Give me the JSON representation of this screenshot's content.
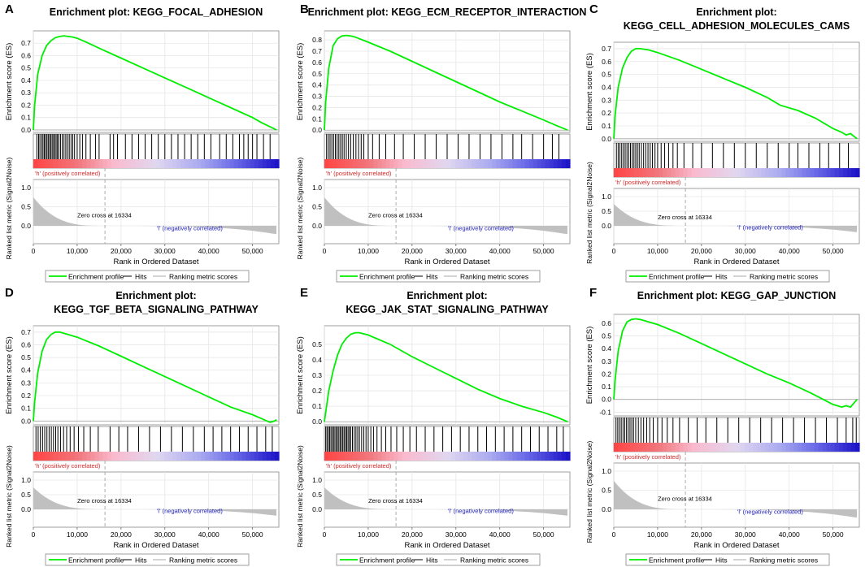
{
  "figure": {
    "shared": {
      "es_axis_label": "Enrichment score (ES)",
      "metric_axis_label": "Ranked list metric (Signal2Noise)",
      "x_axis_label": "Rank in Ordered Dataset",
      "zero_cross_text": "Zero cross at 16334",
      "pos_label": "'h' (positively correlated)",
      "neg_label": "'l' (negatively correlated)",
      "legend": [
        "Enrichment profile",
        "Hits",
        "Ranking metric scores"
      ],
      "x_ticks": [
        "0",
        "10,000",
        "20,000",
        "30,000",
        "40,000",
        "50,000"
      ],
      "metric_ticks": [
        "1.0",
        "0.5",
        "0.0"
      ],
      "colors": {
        "es_line": "#00ee00",
        "hits": "#000000",
        "metric_fill": "#c0c0c0",
        "grid": "#e6e6e6",
        "pos_text": "#d62828",
        "neg_text": "#2020c0"
      }
    }
  },
  "chart_data": [
    {
      "panel": "A",
      "type": "line",
      "title_lines": [
        "Enrichment plot: KEGG_FOCAL_ADHESION"
      ],
      "ylabel": "Enrichment score (ES)",
      "xlabel": "Rank in Ordered Dataset",
      "xlim": [
        0,
        56000
      ],
      "ylim": [
        -0.02,
        0.8
      ],
      "y_ticks": [
        "0.7",
        "0.6",
        "0.5",
        "0.4",
        "0.3",
        "0.2",
        "0.1",
        "0.0"
      ],
      "zero_cross": 16334,
      "es_curve": {
        "x": [
          0,
          300,
          1000,
          2000,
          3000,
          4000,
          5000,
          6000,
          7000,
          8000,
          9000,
          10000,
          12000,
          15000,
          20000,
          25000,
          30000,
          35000,
          40000,
          45000,
          50000,
          52000,
          54000,
          55500
        ],
        "y": [
          0.0,
          0.2,
          0.45,
          0.6,
          0.68,
          0.72,
          0.745,
          0.755,
          0.76,
          0.755,
          0.75,
          0.74,
          0.71,
          0.66,
          0.58,
          0.5,
          0.42,
          0.34,
          0.26,
          0.18,
          0.1,
          0.06,
          0.025,
          0.0
        ]
      },
      "hits_cols": [
        800,
        1200,
        1500,
        1900,
        2200,
        2500,
        2800,
        3100,
        3400,
        3700,
        4000,
        4300,
        4600,
        4900,
        5200,
        5500,
        5800,
        6200,
        6600,
        7000,
        7400,
        7800,
        8200,
        8600,
        9000,
        9400,
        10000,
        10600,
        11200,
        12000,
        13000,
        14200,
        15000,
        17500,
        18300,
        19200,
        21000,
        22500,
        24000,
        25500,
        27000,
        28500,
        30000,
        31500,
        33000,
        34500,
        36000,
        37500,
        39000,
        40500,
        42500,
        44000,
        45500,
        47000,
        48000,
        49000,
        50000,
        51000,
        52500,
        54000
      ]
    },
    {
      "panel": "B",
      "type": "line",
      "title_lines": [
        "Enrichment plot: KEGG_ECM_RECEPTOR_INTERACTION"
      ],
      "ylabel": "Enrichment score (ES)",
      "xlabel": "Rank in Ordered Dataset",
      "xlim": [
        0,
        56000
      ],
      "ylim": [
        -0.02,
        0.88
      ],
      "y_ticks": [
        "0.8",
        "0.7",
        "0.6",
        "0.5",
        "0.4",
        "0.3",
        "0.2",
        "0.1",
        "0.0"
      ],
      "zero_cross": 16334,
      "es_curve": {
        "x": [
          0,
          300,
          1000,
          2000,
          3000,
          4000,
          5000,
          6000,
          7000,
          8000,
          10000,
          15000,
          20000,
          25000,
          30000,
          35000,
          40000,
          45000,
          50000,
          53000,
          55500
        ],
        "y": [
          0.0,
          0.25,
          0.55,
          0.75,
          0.81,
          0.835,
          0.84,
          0.835,
          0.825,
          0.81,
          0.78,
          0.7,
          0.61,
          0.52,
          0.43,
          0.34,
          0.25,
          0.17,
          0.09,
          0.04,
          0.0
        ]
      },
      "hits_cols": [
        500,
        900,
        1300,
        1700,
        2100,
        2500,
        2900,
        3300,
        3700,
        4100,
        4500,
        5000,
        5500,
        6000,
        6600,
        7200,
        7800,
        8400,
        9000,
        10000,
        11000,
        12500,
        14000,
        16000,
        18000,
        20500,
        23000,
        25500,
        28000,
        30500,
        33000,
        35500,
        38000,
        40500,
        43000,
        45000,
        47500,
        50000,
        52000,
        53500
      ]
    },
    {
      "panel": "C",
      "type": "line",
      "title_lines": [
        "Enrichment plot:",
        "KEGG_CELL_ADHESION_MOLECULES_CAMS"
      ],
      "ylabel": "Enrichment score (ES)",
      "xlabel": "Rank in Ordered Dataset",
      "xlim": [
        0,
        56000
      ],
      "ylim": [
        -0.02,
        0.75
      ],
      "y_ticks": [
        "0.7",
        "0.6",
        "0.5",
        "0.4",
        "0.3",
        "0.2",
        "0.1",
        "0.0"
      ],
      "zero_cross": 16334,
      "es_curve": {
        "x": [
          0,
          300,
          1000,
          2000,
          3000,
          4000,
          5000,
          6000,
          7000,
          8000,
          10000,
          15000,
          20000,
          25000,
          30000,
          35000,
          38000,
          42000,
          46000,
          50000,
          52000,
          53000,
          54000,
          55500
        ],
        "y": [
          0.0,
          0.18,
          0.4,
          0.55,
          0.63,
          0.68,
          0.7,
          0.7,
          0.695,
          0.69,
          0.67,
          0.61,
          0.54,
          0.47,
          0.4,
          0.32,
          0.26,
          0.22,
          0.16,
          0.08,
          0.05,
          0.03,
          0.04,
          0.0
        ]
      },
      "hits_cols": [
        600,
        1000,
        1400,
        1800,
        2200,
        2600,
        3000,
        3400,
        3800,
        4200,
        4600,
        5000,
        5400,
        5800,
        6300,
        6800,
        7300,
        7800,
        8300,
        8800,
        9400,
        10000,
        10800,
        11600,
        12500,
        13500,
        14500,
        16000,
        18000,
        20000,
        22500,
        25000,
        27500,
        30000,
        32500,
        35000,
        37500,
        40000,
        42000,
        44500,
        47000,
        49000,
        51500,
        53500
      ]
    },
    {
      "panel": "D",
      "type": "line",
      "title_lines": [
        "Enrichment plot:",
        "KEGG_TGF_BETA_SIGNALING_PATHWAY"
      ],
      "ylabel": "Enrichment score (ES)",
      "xlabel": "Rank in Ordered Dataset",
      "xlim": [
        0,
        56000
      ],
      "ylim": [
        -0.03,
        0.75
      ],
      "y_ticks": [
        "0.7",
        "0.6",
        "0.5",
        "0.4",
        "0.3",
        "0.2",
        "0.1",
        "0.0"
      ],
      "zero_cross": 16334,
      "es_curve": {
        "x": [
          0,
          300,
          1000,
          2000,
          3000,
          4000,
          5000,
          6000,
          7000,
          8000,
          10000,
          15000,
          20000,
          25000,
          30000,
          35000,
          40000,
          45000,
          50000,
          52000,
          54000,
          55000,
          55500
        ],
        "y": [
          0.0,
          0.15,
          0.38,
          0.55,
          0.64,
          0.68,
          0.7,
          0.7,
          0.69,
          0.68,
          0.66,
          0.59,
          0.51,
          0.43,
          0.35,
          0.27,
          0.19,
          0.11,
          0.05,
          0.02,
          -0.01,
          0.0,
          0.01
        ]
      },
      "hits_cols": [
        600,
        1100,
        1600,
        2100,
        2600,
        3100,
        3600,
        4100,
        4600,
        5100,
        5600,
        6200,
        6900,
        7600,
        8400,
        9300,
        10300,
        11500,
        13000,
        14800,
        17500,
        19500,
        21500,
        24000,
        26500,
        29000,
        31500,
        34000,
        36500,
        39000,
        41000,
        43000,
        45000,
        47000,
        49000,
        51000,
        53000,
        54500
      ]
    },
    {
      "panel": "E",
      "type": "line",
      "title_lines": [
        "Enrichment plot:",
        "KEGG_JAK_STAT_SIGNALING_PATHWAY"
      ],
      "ylabel": "Enrichment score (ES)",
      "xlabel": "Rank in Ordered Dataset",
      "xlim": [
        0,
        56000
      ],
      "ylim": [
        -0.02,
        0.62
      ],
      "y_ticks": [
        "0.5",
        "0.4",
        "0.3",
        "0.2",
        "0.1",
        "0.0"
      ],
      "zero_cross": 16334,
      "es_curve": {
        "x": [
          0,
          500,
          1000,
          2000,
          3000,
          4000,
          5000,
          6000,
          7000,
          8000,
          10000,
          15000,
          20000,
          25000,
          30000,
          35000,
          40000,
          45000,
          50000,
          53000,
          55500
        ],
        "y": [
          0.0,
          0.1,
          0.2,
          0.33,
          0.43,
          0.5,
          0.54,
          0.565,
          0.575,
          0.575,
          0.56,
          0.5,
          0.42,
          0.35,
          0.28,
          0.21,
          0.15,
          0.1,
          0.06,
          0.03,
          0.0
        ]
      },
      "hits_cols": [
        300,
        600,
        900,
        1200,
        1500,
        1800,
        2100,
        2400,
        2700,
        3000,
        3300,
        3600,
        3900,
        4200,
        4500,
        4800,
        5100,
        5400,
        5700,
        6000,
        6400,
        6800,
        7200,
        7600,
        8000,
        8500,
        9000,
        9500,
        10000,
        10600,
        11200,
        12000,
        13000,
        14000,
        15200,
        16500,
        18000,
        19500,
        21000,
        23000,
        25000,
        27000,
        29000,
        31000,
        33000,
        35000,
        37000,
        39000,
        41000,
        43000,
        45000,
        47000,
        49000,
        51000,
        53000,
        54500
      ]
    },
    {
      "panel": "F",
      "type": "line",
      "title_lines": [
        "Enrichment plot: KEGG_GAP_JUNCTION"
      ],
      "ylabel": "Enrichment score (ES)",
      "xlabel": "Rank in Ordered Dataset",
      "xlim": [
        0,
        56000
      ],
      "ylim": [
        -0.13,
        0.67
      ],
      "y_ticks": [
        "0.6",
        "0.5",
        "0.4",
        "0.3",
        "0.2",
        "0.1",
        "0.0",
        "-0.1"
      ],
      "zero_cross": 16334,
      "es_curve": {
        "x": [
          0,
          300,
          1000,
          2000,
          3000,
          4000,
          5000,
          6000,
          7000,
          8000,
          10000,
          15000,
          20000,
          25000,
          30000,
          35000,
          40000,
          45000,
          50000,
          51000,
          52000,
          53000,
          54000,
          55000,
          55500
        ],
        "y": [
          0.0,
          0.15,
          0.38,
          0.54,
          0.61,
          0.63,
          0.635,
          0.63,
          0.62,
          0.61,
          0.59,
          0.52,
          0.44,
          0.36,
          0.28,
          0.2,
          0.13,
          0.05,
          -0.04,
          -0.05,
          -0.06,
          -0.05,
          -0.06,
          -0.02,
          0.0
        ]
      },
      "hits_cols": [
        500,
        900,
        1300,
        1700,
        2100,
        2500,
        2900,
        3300,
        3700,
        4100,
        4500,
        5000,
        5600,
        6200,
        6800,
        7500,
        8200,
        9000,
        10000,
        11000,
        12200,
        13500,
        15000,
        17000,
        19000,
        21000,
        23500,
        26000,
        28500,
        31000,
        33500,
        36000,
        38500,
        41000,
        43500,
        46000,
        48500,
        51000,
        53000,
        54500,
        55300
      ]
    }
  ]
}
